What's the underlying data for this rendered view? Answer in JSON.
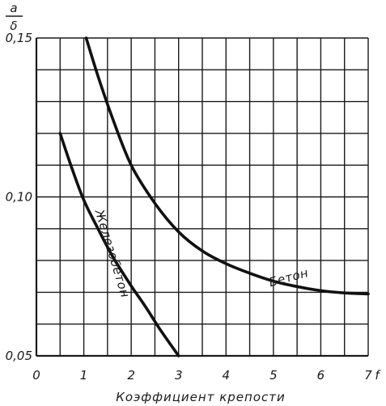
{
  "chart_data": {
    "type": "line",
    "xlabel": "Коэффициент крепости",
    "x_unit": "f",
    "ylabel_numerator": "a",
    "ylabel_denominator": "δ",
    "xlim": [
      0,
      7
    ],
    "ylim": [
      0.05,
      0.15
    ],
    "x_ticks": [
      "0",
      "1",
      "2",
      "3",
      "4",
      "5",
      "6",
      "7"
    ],
    "y_ticks": [
      "0,05",
      "0,10",
      "0,15"
    ],
    "grid": true,
    "series": [
      {
        "name": "Бетон",
        "x": [
          1.05,
          1.3,
          1.6,
          2.0,
          2.5,
          3.0,
          3.5,
          4.0,
          4.5,
          5.0,
          5.5,
          6.0,
          6.5,
          7.0
        ],
        "y": [
          0.15,
          0.138,
          0.125,
          0.11,
          0.098,
          0.089,
          0.083,
          0.079,
          0.076,
          0.0735,
          0.0718,
          0.0705,
          0.0698,
          0.0695
        ]
      },
      {
        "name": "Железобетон",
        "x": [
          0.5,
          0.75,
          1.0,
          1.3,
          1.6,
          2.0,
          2.3,
          2.6,
          3.0
        ],
        "y": [
          0.12,
          0.109,
          0.099,
          0.09,
          0.0815,
          0.072,
          0.0655,
          0.0585,
          0.05
        ]
      }
    ]
  }
}
